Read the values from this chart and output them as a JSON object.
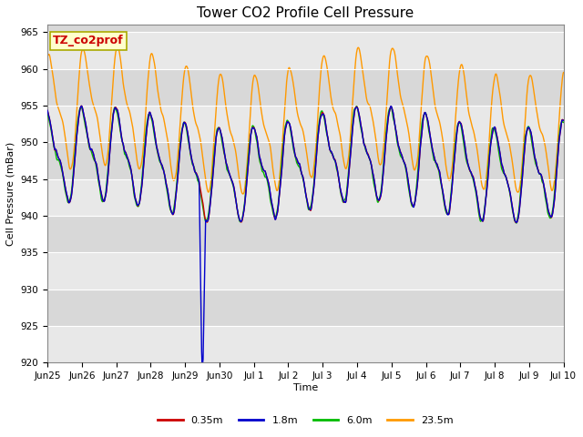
{
  "title": "Tower CO2 Profile Cell Pressure",
  "ylabel": "Cell Pressure (mBar)",
  "xlabel": "Time",
  "ylim": [
    920,
    966
  ],
  "yticks": [
    920,
    925,
    930,
    935,
    940,
    945,
    950,
    955,
    960,
    965
  ],
  "series_labels": [
    "0.35m",
    "1.8m",
    "6.0m",
    "23.5m"
  ],
  "series_colors": [
    "#cc0000",
    "#0000cc",
    "#00bb00",
    "#ff9900"
  ],
  "annotation_text": "TZ_co2prof",
  "annotation_color": "#cc0000",
  "annotation_bg": "#ffffcc",
  "annotation_border": "#aaaa00",
  "title_fontsize": 11,
  "label_fontsize": 8,
  "tick_fontsize": 7.5,
  "legend_fontsize": 8,
  "band_colors": [
    "#e8e8e8",
    "#d8d8d8"
  ],
  "fig_width": 6.4,
  "fig_height": 4.8,
  "dpi": 100
}
